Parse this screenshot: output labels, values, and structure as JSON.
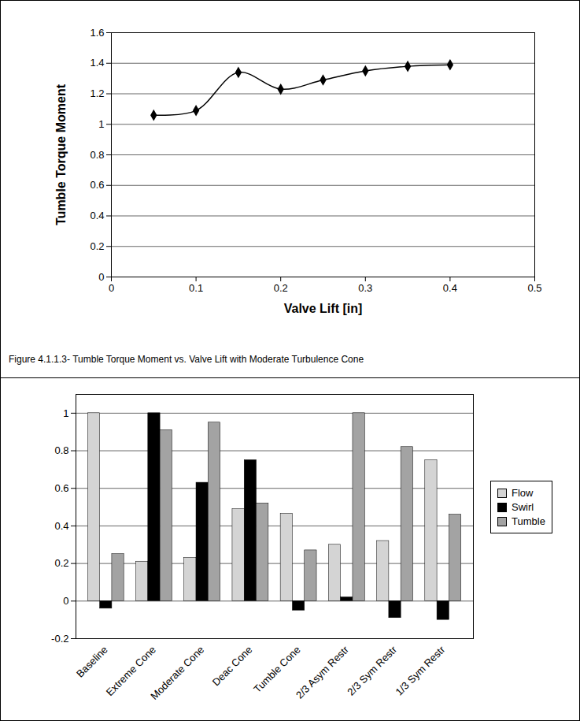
{
  "chart_data": [
    {
      "type": "line",
      "x_label": "Valve Lift [in]",
      "y_label": "Tumble Torque Moment",
      "caption": "Figure 4.1.1.3- Tumble Torque Moment vs. Valve Lift with Moderate Turbulence Cone",
      "x": [
        0.05,
        0.1,
        0.15,
        0.2,
        0.25,
        0.3,
        0.35,
        0.4
      ],
      "values": [
        1.06,
        1.09,
        1.34,
        1.23,
        1.29,
        1.35,
        1.38,
        1.39
      ],
      "color": "#000000",
      "marker": "diamond",
      "line_style": "smooth",
      "xlim": [
        0,
        0.5
      ],
      "xticks": [
        0,
        0.1,
        0.2,
        0.3,
        0.4,
        0.5
      ],
      "ylim": [
        0,
        1.6
      ],
      "yticks": [
        0,
        0.2,
        0.4,
        0.6,
        0.8,
        1,
        1.2,
        1.4,
        1.6
      ],
      "grid": true
    },
    {
      "type": "bar",
      "categories": [
        "Baseline",
        "Extreme Cone",
        "Moderate Cone",
        "Deac Cone",
        "Tumble Cone",
        "2/3 Asym Restr",
        "2/3 Sym Restr",
        "1/3 Sym Restr"
      ],
      "series": [
        {
          "name": "Flow",
          "color": "#d4d4d4",
          "values": [
            1,
            0.21,
            0.23,
            0.49,
            0.465,
            0.3,
            0.32,
            0.75
          ]
        },
        {
          "name": "Swirl",
          "color": "#000000",
          "values": [
            -0.04,
            1,
            0.63,
            0.75,
            -0.05,
            0.02,
            -0.09,
            -0.1
          ]
        },
        {
          "name": "Tumble",
          "color": "#a3a3a3",
          "values": [
            0.25,
            0.91,
            0.95,
            0.52,
            0.27,
            1,
            0.82,
            0.46
          ]
        }
      ],
      "ylim": [
        -0.2,
        1.1
      ],
      "yticks": [
        -0.2,
        0,
        0.2,
        0.4,
        0.6,
        0.8,
        1
      ],
      "grid": true,
      "legend": "right"
    }
  ]
}
